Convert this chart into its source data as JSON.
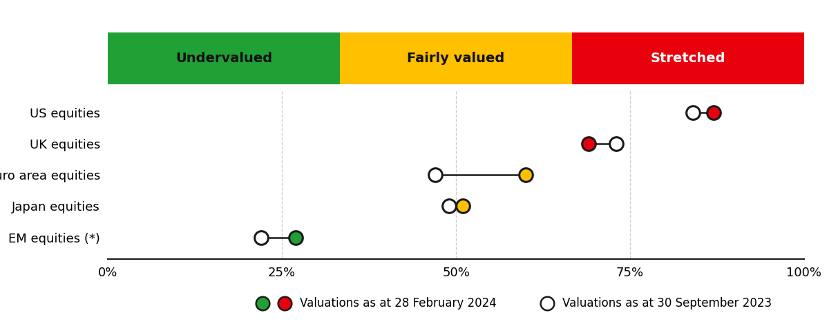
{
  "categories": [
    "US equities",
    "UK equities",
    "Euro area equities",
    "Japan equities",
    "EM equities (*)"
  ],
  "current_values": [
    87,
    69,
    60,
    51,
    27
  ],
  "previous_values": [
    84,
    73,
    47,
    49,
    22
  ],
  "current_colors": [
    "#E8000D",
    "#E8000D",
    "#FFC000",
    "#FFC000",
    "#21A036"
  ],
  "previous_color": "#FFFFFF",
  "zone_boundaries": [
    0,
    33.33,
    66.67,
    100
  ],
  "zone_colors": [
    "#21A036",
    "#FFC000",
    "#E8000D"
  ],
  "zone_labels": [
    "Undervalued",
    "Fairly valued",
    "Stretched"
  ],
  "zone_label_colors": [
    "#111111",
    "#111111",
    "#FFFFFF"
  ],
  "xtick_labels": [
    "0%",
    "25%",
    "50%",
    "75%",
    "100%"
  ],
  "xtick_values": [
    0,
    25,
    50,
    75,
    100
  ],
  "legend_text_1": "Valuations as at 28 February 2024",
  "legend_text_2": "Valuations as at 30 September 2023",
  "background_color": "#FFFFFF",
  "marker_size": 200,
  "line_color": "#1a1a1a",
  "edge_color": "#1a1a1a",
  "edge_width": 2.2,
  "vline_color": "#cccccc",
  "vline_style": "dashed"
}
